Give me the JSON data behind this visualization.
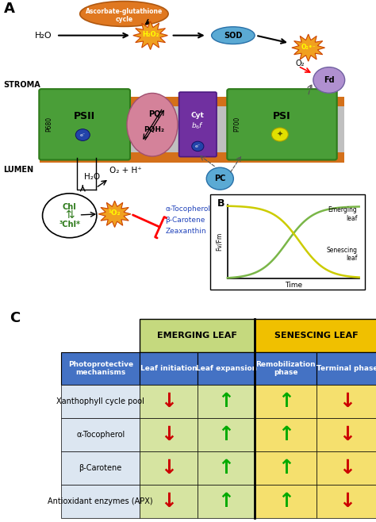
{
  "panel_A_label": "A",
  "panel_B_label": "B",
  "panel_C_label": "C",
  "stroma_label": "STROMA",
  "lumen_label": "LUMEN",
  "table_headers_row1": [
    "Photoprotective\nmechanisms",
    "Leaf initiation",
    "Leaf expansion",
    "Remobilization\nphase",
    "Terminal phase"
  ],
  "table_rows": [
    "Xanthophyll cycle pool",
    "α-Tocopherol",
    "β-Carotene",
    "Antioxidant enzymes (APX)"
  ],
  "arrows": [
    [
      "down_red",
      "up_green",
      "up_green",
      "down_red"
    ],
    [
      "down_red",
      "up_green",
      "up_green",
      "down_red"
    ],
    [
      "down_red",
      "up_green",
      "up_green",
      "down_red"
    ],
    [
      "down_red",
      "up_green",
      "up_green",
      "down_red"
    ]
  ],
  "col_bg_colors": [
    "#dce6f1",
    "#d6e4a1",
    "#d6e4a1",
    "#f5e06e",
    "#f5e06e"
  ],
  "header_row1_bg": "#4472c4",
  "emerging_header_bg": "#c5d97e",
  "senescing_header_bg": "#f0c000",
  "arrow_up_color": "#00aa00",
  "arrow_down_color": "#cc0000",
  "graph_B_emerging_color": "#7ab648",
  "graph_B_senescing_color": "#cccc00",
  "psii_color": "#4a9e38",
  "psi_color": "#4a9e38",
  "membrane_outer_color": "#d4701a",
  "pq_color": "#d4829a",
  "cytbf_color": "#7030a0",
  "fd_color": "#b090d0",
  "pc_color": "#5baad4",
  "sod_color": "#5baad4",
  "ascorbate_color": "#e07820",
  "green_dark": "#2d7a1a",
  "blue_text": "#2244bb",
  "electron_color": "#2244aa"
}
